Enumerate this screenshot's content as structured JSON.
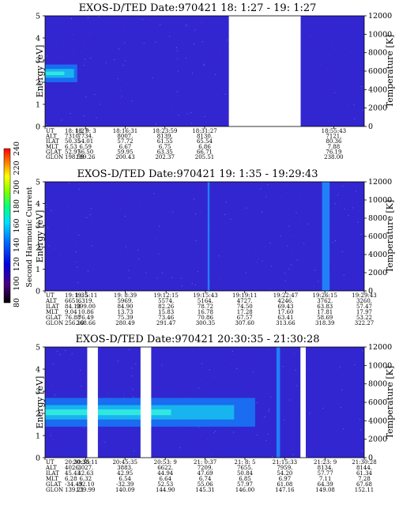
{
  "figure": {
    "colorbar": {
      "label": "Second Harmonic Current",
      "ticks": [
        "80",
        "100",
        "120",
        "140",
        "160",
        "180",
        "200",
        "220",
        "240"
      ]
    }
  },
  "chart_data": [
    {
      "type": "heatmap",
      "title": "EXOS-D/TED   Date:970421  18: 1:27 - 19: 1:27",
      "ylabel": "Energy [eV]",
      "y2label": "Temperature [K]",
      "ylim": [
        0,
        5
      ],
      "y2lim": [
        0,
        12000
      ],
      "yticks": [
        "0",
        "1",
        "2",
        "3",
        "4",
        "5"
      ],
      "y2ticks": [
        "0",
        "2000",
        "4000",
        "6000",
        "8000",
        "10000",
        "12000"
      ],
      "features": [
        {
          "name": "enhanced band",
          "x_range": [
            "18: 1:27",
            "18: 7:30"
          ],
          "energy_range_eV": [
            2.0,
            2.8
          ]
        },
        {
          "name": "data gap",
          "x_range": [
            "18:36:00",
            "18:49:30"
          ]
        }
      ],
      "row_labels": [
        "UT",
        "ALT",
        "ILAT",
        "MLT",
        "GLAT",
        "GLON"
      ],
      "table": [
        [
          "18: 1:27",
          "18: 9: 3",
          "18:16:31",
          "18:23:59",
          "18:31:27",
          "18:55:43"
        ],
        [
          "7310.",
          "7734.",
          "8007.",
          "8139.",
          "8130.",
          "7121."
        ],
        [
          "50.35",
          "54.01",
          "57.72",
          "61.55",
          "65.54",
          "80.36"
        ],
        [
          "6.53",
          "6.59",
          "6.67",
          "6.75",
          "6.86",
          "7.88"
        ],
        [
          "52.97",
          "56.50",
          "59.95",
          "63.35",
          "66.71",
          "76.19"
        ],
        [
          "198.59",
          "199.26",
          "200.43",
          "202.37",
          "205.51",
          "238.00"
        ]
      ]
    },
    {
      "type": "heatmap",
      "title": "EXOS-D/TED   Date:970421  19: 1:35 - 19:29:43",
      "ylabel": "Energy [eV]",
      "y2label": "Temperature [K]",
      "ylim": [
        0,
        5
      ],
      "y2lim": [
        0,
        12000
      ],
      "yticks": [
        "0",
        "1",
        "2",
        "3",
        "4",
        "5"
      ],
      "y2ticks": [
        "0",
        "2000",
        "4000",
        "6000",
        "8000",
        "10000",
        "12000"
      ],
      "features": [
        {
          "name": "vertical streak",
          "x_range": [
            "19:15:55",
            "19:16:05"
          ]
        },
        {
          "name": "vertical streak",
          "x_range": [
            "19:26:00",
            "19:26:40"
          ]
        }
      ],
      "row_labels": [
        "UT",
        "ALT",
        "ILAT",
        "MLT",
        "GLAT",
        "GLON"
      ],
      "table": [
        [
          "19: 1:35",
          "19: 5:11",
          "19: 8:39",
          "19:12:15",
          "19:15:43",
          "19:19:11",
          "19:22:47",
          "19:26:15",
          "19:29:43"
        ],
        [
          "6651.",
          "6319.",
          "5969.",
          "5574.",
          "5164.",
          "4727.",
          "4246.",
          "3762.",
          "3260."
        ],
        [
          "84.13",
          "999.00",
          "84.90",
          "82.26",
          "78.72",
          "74.50",
          "69.43",
          "63.83",
          "57.47"
        ],
        [
          "9.04",
          "10.86",
          "13.73",
          "15.83",
          "16.78",
          "17.28",
          "17.60",
          "17.81",
          "17.97"
        ],
        [
          "76.88",
          "76.49",
          "75.39",
          "73.46",
          "70.86",
          "67.57",
          "63.41",
          "58.69",
          "53.22"
        ],
        [
          "256.10",
          "268.66",
          "280.49",
          "291.47",
          "300.35",
          "307.60",
          "313.66",
          "318.39",
          "322.27"
        ]
      ]
    },
    {
      "type": "heatmap",
      "title": "EXOS-D/TED   Date:970421  20:30:35 - 21:30:28",
      "ylabel": "Energy [eV]",
      "y2label": "Temperature [K]",
      "ylim": [
        0,
        5
      ],
      "y2lim": [
        0,
        12000
      ],
      "yticks": [
        "0",
        "1",
        "2",
        "3",
        "4",
        "5"
      ],
      "y2ticks": [
        "0",
        "2000",
        "4000",
        "6000",
        "8000",
        "10000",
        "12000"
      ],
      "features": [
        {
          "name": "enhanced band",
          "x_range": [
            "20:30:35",
            "21:10:00"
          ],
          "energy_range_eV": [
            1.4,
            2.7
          ]
        },
        {
          "name": "data gap",
          "x_range": [
            "20:38:30",
            "20:40:30"
          ]
        },
        {
          "name": "data gap",
          "x_range": [
            "20:48:30",
            "20:50:30"
          ]
        },
        {
          "name": "data gap",
          "x_range": [
            "21:18:30",
            "21:19:30"
          ]
        },
        {
          "name": "vertical streak",
          "x_range": [
            "21:14:00",
            "21:14:40"
          ]
        }
      ],
      "row_labels": [
        "UT",
        "ALT",
        "ILAT",
        "MLT",
        "GLAT",
        "GLON"
      ],
      "table": [
        [
          "20:30:35",
          "20:38:11",
          "20:45:35",
          "20:53: 9",
          "21: 0:37",
          "21: 8: 5",
          "21:15:33",
          "21:23: 9",
          "21:30:28"
        ],
        [
          "4026.",
          "3027.",
          "3883.",
          "6622.",
          "7209.",
          "7655.",
          "7959.",
          "8134.",
          "8144."
        ],
        [
          "45.43",
          "42.63",
          "42.95",
          "44.94",
          "47.69",
          "50.84",
          "54.20",
          "57.77",
          "61.34"
        ],
        [
          "6.28",
          "6.32",
          "6.54",
          "6.64",
          "6.74",
          "6.85",
          "6.97",
          "7.11",
          "7.28"
        ],
        [
          "-34.49",
          "-32.10",
          "-32.39",
          "52.53",
          "55.06",
          "57.97",
          "61.08",
          "64.39",
          "67.68"
        ],
        [
          "139.21",
          "139.99",
          "140.09",
          "144.90",
          "145.31",
          "146.00",
          "147.16",
          "149.08",
          "152.11"
        ]
      ]
    }
  ]
}
